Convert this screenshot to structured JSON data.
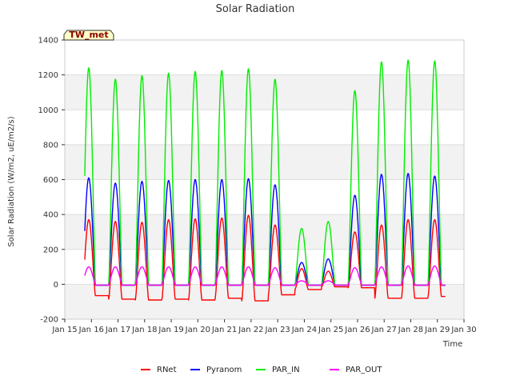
{
  "chart_data": {
    "type": "line",
    "title": "Solar Radiation",
    "xlabel": "Time",
    "ylabel": "Solar Radiation (W/m2, uE/m2/s)",
    "badge": "TW_met",
    "xlim": [
      15,
      30
    ],
    "ylim": [
      -200,
      1400
    ],
    "x_ticks": [
      {
        "v": 15,
        "label": "Jan 15"
      },
      {
        "v": 16,
        "label": "Jan 16"
      },
      {
        "v": 17,
        "label": "Jan 17"
      },
      {
        "v": 18,
        "label": "Jan 18"
      },
      {
        "v": 19,
        "label": "Jan 19"
      },
      {
        "v": 20,
        "label": "Jan 20"
      },
      {
        "v": 21,
        "label": "Jan 21"
      },
      {
        "v": 22,
        "label": "Jan 22"
      },
      {
        "v": 23,
        "label": "Jan 23"
      },
      {
        "v": 24,
        "label": "Jan 24"
      },
      {
        "v": 25,
        "label": "Jan 25"
      },
      {
        "v": 26,
        "label": "Jan 26"
      },
      {
        "v": 27,
        "label": "Jan 27"
      },
      {
        "v": 28,
        "label": "Jan 28"
      },
      {
        "v": 29,
        "label": "Jan 29"
      },
      {
        "v": 30,
        "label": "Jan 30"
      }
    ],
    "y_ticks": [
      {
        "v": -200,
        "label": "-200"
      },
      {
        "v": 0,
        "label": "0"
      },
      {
        "v": 200,
        "label": "200"
      },
      {
        "v": 400,
        "label": "400"
      },
      {
        "v": 600,
        "label": "600"
      },
      {
        "v": 800,
        "label": "800"
      },
      {
        "v": 1000,
        "label": "1000"
      },
      {
        "v": 1200,
        "label": "1200"
      },
      {
        "v": 1400,
        "label": "1400"
      }
    ],
    "days": [
      15.9,
      16.9,
      17.9,
      18.9,
      19.9,
      20.9,
      21.9,
      22.9,
      23.9,
      24.9,
      25.9,
      26.9,
      27.9,
      28.9
    ],
    "night_rnet": [
      -65,
      -85,
      -90,
      -85,
      -90,
      -80,
      -95,
      -60,
      -30,
      -15,
      -20,
      -80,
      -80,
      -70
    ],
    "series": [
      {
        "name": "RNet",
        "color": "#ff0000",
        "peaks": [
          370,
          360,
          355,
          370,
          375,
          380,
          395,
          340,
          90,
          75,
          300,
          340,
          370,
          370
        ]
      },
      {
        "name": "Pyranom",
        "color": "#0000ff",
        "peaks": [
          610,
          580,
          590,
          595,
          600,
          600,
          605,
          570,
          125,
          145,
          510,
          630,
          635,
          620
        ]
      },
      {
        "name": "PAR_IN",
        "color": "#00ee00",
        "peaks": [
          1240,
          1175,
          1195,
          1210,
          1220,
          1225,
          1235,
          1175,
          320,
          360,
          1110,
          1275,
          1285,
          1280
        ]
      },
      {
        "name": "PAR_OUT",
        "color": "#ff00ff",
        "peaks": [
          100,
          100,
          100,
          100,
          100,
          100,
          100,
          95,
          20,
          20,
          95,
          100,
          105,
          105
        ]
      }
    ]
  }
}
